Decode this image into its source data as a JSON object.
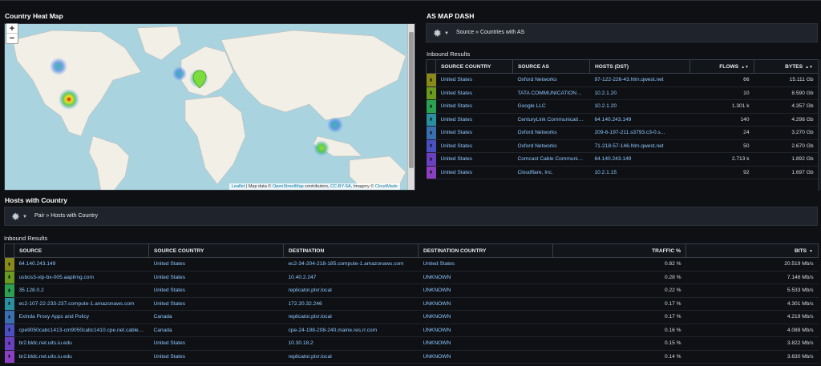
{
  "heatmap": {
    "title": "Country Heat Map",
    "zoom_in": "+",
    "zoom_out": "−",
    "attribution": {
      "leaflet": "Leaflet",
      "sep": " | Map data © ",
      "osm": "OpenStreetMap",
      "contrib": " contributors, ",
      "license": "CC-BY-SA",
      "imagery": ", Imagery © ",
      "cloudmade": "CloudMade"
    }
  },
  "asmap": {
    "title": "AS MAP DASH",
    "breadcrumb": "Source » Countries with AS",
    "subtitle": "Inbound Results",
    "columns": [
      "SOURCE COUNTRY",
      "SOURCE AS",
      "HOSTS (DST)",
      "FLOWS",
      "BYTES"
    ],
    "sort_icon": "▲▼",
    "rows": [
      {
        "country": "United States",
        "as": "Oxford Networks",
        "host": "97-122-226-43.hlrn.qwest.net",
        "flows": "66",
        "bytes": "15.111 Gb",
        "color": "#8a8a1a"
      },
      {
        "country": "United States",
        "as": "TATA COMMUNICATIONS (AM...",
        "host": "10.2.1.20",
        "flows": "10",
        "bytes": "8.590 Gb",
        "color": "#6a9a20"
      },
      {
        "country": "United States",
        "as": "Google LLC",
        "host": "10.2.1.20",
        "flows": "1.301 k",
        "bytes": "4.357 Gb",
        "color": "#2aa050"
      },
      {
        "country": "United States",
        "as": "CenturyLink Communication...",
        "host": "64.140.243.149",
        "flows": "140",
        "bytes": "4.298 Gb",
        "color": "#2a90a0"
      },
      {
        "country": "United States",
        "as": "Oxford Networks",
        "host": "209-6-197-211.s3793.c3-0.s...",
        "flows": "24",
        "bytes": "3.270 Gb",
        "color": "#3a70b0"
      },
      {
        "country": "United States",
        "as": "Oxford Networks",
        "host": "71-218-57-146.hlrn.qwest.net",
        "flows": "50",
        "bytes": "2.670 Gb",
        "color": "#4a50c0"
      },
      {
        "country": "United States",
        "as": "Comcast Cable Communicati...",
        "host": "64.140.243.149",
        "flows": "2.713 k",
        "bytes": "1.892 Gb",
        "color": "#6a40c0"
      },
      {
        "country": "United States",
        "as": "Cloudflare, Inc.",
        "host": "10.2.1.15",
        "flows": "92",
        "bytes": "1.697 Gb",
        "color": "#8a40c0"
      }
    ]
  },
  "hosts": {
    "title": "Hosts with Country",
    "breadcrumb": "Pair » Hosts with Country",
    "subtitle": "Inbound Results",
    "columns": [
      "SOURCE",
      "SOURCE COUNTRY",
      "DESTINATION",
      "DESTINATION COUNTRY",
      "TRAFFIC %",
      "BITS"
    ],
    "sort_icon": "▼",
    "rows": [
      {
        "src": "64.140.243.149",
        "country": "United States",
        "dst": "ec2-34-204-218-185.compute-1.amazonaws.com",
        "dcountry": "United States",
        "traffic": "0.82 %",
        "bits": "20.519 Mb/s",
        "color": "#8a8a1a"
      },
      {
        "src": "usbos3-vip-bx-005.aaplimg.com",
        "country": "United States",
        "dst": "10.40.2.247",
        "dcountry": "UNKNOWN",
        "traffic": "0.28 %",
        "bits": "7.146 Mb/s",
        "color": "#6a9a20"
      },
      {
        "src": "35.128.0.2",
        "country": "United States",
        "dst": "replicator.plxr.local",
        "dcountry": "UNKNOWN",
        "traffic": "0.22 %",
        "bits": "5.533 Mb/s",
        "color": "#2aa050"
      },
      {
        "src": "ec2-107-22-233-237.compute-1.amazonaws.com",
        "country": "United States",
        "dst": "172.20.32.246",
        "dcountry": "UNKNOWN",
        "traffic": "0.17 %",
        "bits": "4.301 Mb/s",
        "color": "#2a90a0"
      },
      {
        "src": "Exinda Proxy Apps and Policy",
        "country": "Canada",
        "dst": "replicator.plxr.local",
        "dcountry": "UNKNOWN",
        "traffic": "0.17 %",
        "bits": "4.219 Mb/s",
        "color": "#3a70b0"
      },
      {
        "src": "cpe9050cabc1413-cm9050cabc1410.cpe.net.cable.r...",
        "country": "Canada",
        "dst": "cpe-24-198-208-240.maine.res.rr.com",
        "dcountry": "UNKNOWN",
        "traffic": "0.16 %",
        "bits": "4.088 Mb/s",
        "color": "#4a50c0"
      },
      {
        "src": "br2.bldc.net.uits.iu.edu",
        "country": "United States",
        "dst": "10.30.18.2",
        "dcountry": "UNKNOWN",
        "traffic": "0.15 %",
        "bits": "3.822 Mb/s",
        "color": "#6a40c0"
      },
      {
        "src": "br2.bldc.net.uits.iu.edu",
        "country": "United States",
        "dst": "replicator.plxr.local",
        "dcountry": "UNKNOWN",
        "traffic": "0.14 %",
        "bits": "3.630 Mb/s",
        "color": "#8a40c0"
      }
    ]
  }
}
